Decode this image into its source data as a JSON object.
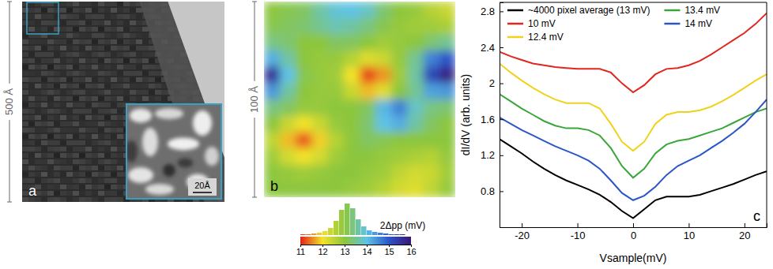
{
  "chart_data": [
    {
      "type": "image",
      "scale_label": "500 Å",
      "panel_label": "a",
      "inset_scale_label": "20Å"
    },
    {
      "type": "heatmap",
      "scale_label": "100 Å",
      "panel_label": "b",
      "cells": [
        [
          13.0,
          13.1,
          13.2,
          13.6,
          13.9,
          14.0,
          13.8,
          13.3,
          13.0,
          12.9,
          12.6,
          12.4
        ],
        [
          13.1,
          13.2,
          13.3,
          13.5,
          13.7,
          13.6,
          13.4,
          13.1,
          12.9,
          12.8,
          12.8,
          12.7
        ],
        [
          13.4,
          13.3,
          13.0,
          13.0,
          13.2,
          13.2,
          13.0,
          12.8,
          12.9,
          13.0,
          13.3,
          13.5
        ],
        [
          14.2,
          13.6,
          13.0,
          12.9,
          12.9,
          12.6,
          12.2,
          12.4,
          12.9,
          13.5,
          14.6,
          15.0
        ],
        [
          15.6,
          14.0,
          13.1,
          12.9,
          12.8,
          12.0,
          11.2,
          11.6,
          12.8,
          13.6,
          15.2,
          15.8
        ],
        [
          14.4,
          13.6,
          13.0,
          12.9,
          12.9,
          12.4,
          11.8,
          12.2,
          13.0,
          13.5,
          14.3,
          14.4
        ],
        [
          13.4,
          13.2,
          12.9,
          12.9,
          13.0,
          13.0,
          13.2,
          14.1,
          14.6,
          13.8,
          13.4,
          13.3
        ],
        [
          13.0,
          12.4,
          12.0,
          12.4,
          12.9,
          13.0,
          13.3,
          14.0,
          14.2,
          13.6,
          13.2,
          13.0
        ],
        [
          12.5,
          11.8,
          11.3,
          11.9,
          12.6,
          13.0,
          13.2,
          13.1,
          13.0,
          13.0,
          13.0,
          13.0
        ],
        [
          12.8,
          12.3,
          12.0,
          12.3,
          12.8,
          13.0,
          13.0,
          12.9,
          12.8,
          12.7,
          12.6,
          12.9
        ],
        [
          13.0,
          12.9,
          12.8,
          12.9,
          13.0,
          13.0,
          12.9,
          12.8,
          12.5,
          12.3,
          12.4,
          12.8
        ],
        [
          13.0,
          13.0,
          13.0,
          13.0,
          13.0,
          12.9,
          12.8,
          12.6,
          12.3,
          12.2,
          12.5,
          12.9
        ]
      ],
      "colorbar": {
        "range": [
          11,
          16
        ],
        "ticks": [
          11,
          12,
          13,
          14,
          15,
          16
        ],
        "label": "2Δpp (mV)"
      },
      "histogram": {
        "bins": [
          11,
          11.25,
          11.5,
          11.75,
          12,
          12.25,
          12.5,
          12.75,
          13,
          13.25,
          13.5,
          13.75,
          14,
          14.25,
          14.5,
          14.75,
          15,
          15.25,
          15.5,
          15.75,
          16
        ],
        "counts": [
          1,
          1,
          2,
          3,
          5,
          9,
          18,
          32,
          40,
          34,
          20,
          11,
          6,
          4,
          3,
          2,
          1,
          1,
          1,
          0
        ]
      }
    },
    {
      "type": "line",
      "panel_label": "c",
      "xlabel": "Vsample(mV)",
      "ylabel": "dI/dV (arb. units)",
      "xlim": [
        -24,
        24
      ],
      "ylim": [
        0.4,
        2.9
      ],
      "xticks": [
        -20,
        -10,
        0,
        10,
        20
      ],
      "yticks": [
        0.8,
        1.2,
        1.6,
        2.0,
        2.4,
        2.8
      ],
      "legend": "upper left",
      "x": [
        -24,
        -22,
        -20,
        -18,
        -16,
        -14,
        -12,
        -10,
        -8,
        -6,
        -4,
        -2,
        0,
        2,
        4,
        6,
        8,
        10,
        12,
        14,
        16,
        18,
        20,
        22,
        24
      ],
      "series": [
        {
          "name": "~4000 pixel average (13 mV)",
          "color": "#000000",
          "values": [
            1.38,
            1.3,
            1.22,
            1.13,
            1.05,
            0.98,
            0.92,
            0.87,
            0.82,
            0.76,
            0.68,
            0.58,
            0.5,
            0.6,
            0.7,
            0.74,
            0.74,
            0.74,
            0.76,
            0.8,
            0.84,
            0.88,
            0.93,
            0.98,
            1.02
          ]
        },
        {
          "name": "10 mV",
          "color": "#e0261f",
          "values": [
            2.35,
            2.3,
            2.26,
            2.22,
            2.2,
            2.18,
            2.17,
            2.16,
            2.16,
            2.16,
            2.12,
            2.0,
            1.9,
            1.98,
            2.1,
            2.16,
            2.17,
            2.2,
            2.25,
            2.32,
            2.4,
            2.48,
            2.56,
            2.66,
            2.78
          ]
        },
        {
          "name": "12.4 mV",
          "color": "#f0d21c",
          "values": [
            2.22,
            2.12,
            2.03,
            1.95,
            1.88,
            1.82,
            1.78,
            1.78,
            1.78,
            1.72,
            1.55,
            1.35,
            1.25,
            1.35,
            1.55,
            1.65,
            1.68,
            1.68,
            1.7,
            1.74,
            1.8,
            1.87,
            1.95,
            2.03,
            2.1
          ]
        },
        {
          "name": "13.4 mV",
          "color": "#3aa63a",
          "values": [
            1.88,
            1.8,
            1.72,
            1.65,
            1.58,
            1.53,
            1.5,
            1.5,
            1.48,
            1.42,
            1.28,
            1.08,
            0.95,
            1.05,
            1.22,
            1.32,
            1.36,
            1.38,
            1.42,
            1.46,
            1.5,
            1.56,
            1.62,
            1.68,
            1.72
          ]
        },
        {
          "name": "14 mV",
          "color": "#2a56c6",
          "values": [
            1.62,
            1.55,
            1.48,
            1.42,
            1.36,
            1.3,
            1.25,
            1.2,
            1.14,
            1.05,
            0.92,
            0.78,
            0.7,
            0.75,
            0.85,
            0.98,
            1.08,
            1.14,
            1.2,
            1.28,
            1.36,
            1.45,
            1.55,
            1.68,
            1.82
          ]
        }
      ]
    }
  ]
}
